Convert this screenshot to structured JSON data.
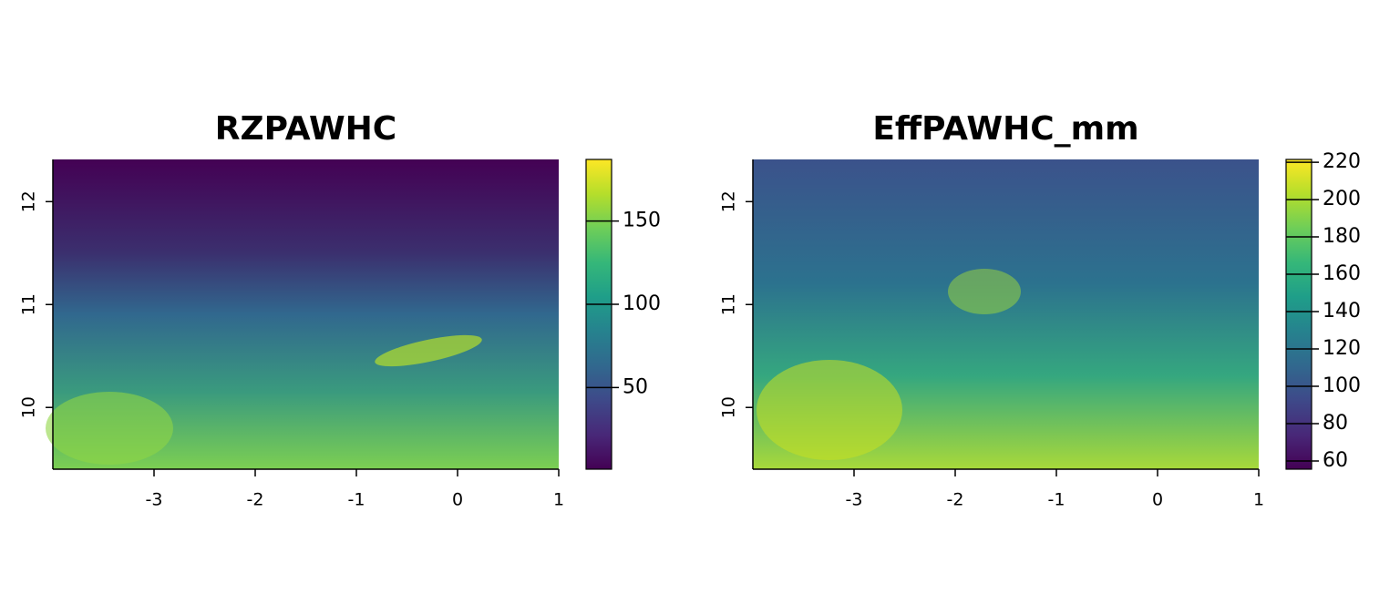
{
  "chart_data": [
    {
      "type": "raster",
      "title": "RZPAWHC",
      "xlim": [
        -4,
        1
      ],
      "xticks": [
        -3,
        -2,
        -1,
        0,
        1
      ],
      "ylim": [
        9.4,
        12.41
      ],
      "yticks": [
        10,
        11,
        12
      ],
      "zlim": [
        1,
        187
      ],
      "zticks": [
        50,
        100,
        150
      ],
      "colors": [
        "#440154",
        "#482878",
        "#3e4989",
        "#31688e",
        "#26828e",
        "#1f9e89",
        "#35b779",
        "#6ece58",
        "#b5de2b",
        "#fde725"
      ]
    },
    {
      "type": "raster",
      "title": "EffPAWHC_mm",
      "xlim": [
        -4,
        1
      ],
      "xticks": [
        -3,
        -2,
        -1,
        0,
        1
      ],
      "ylim": [
        9.4,
        12.41
      ],
      "yticks": [
        10,
        11,
        12
      ],
      "zlim": [
        55.6,
        221.5
      ],
      "zticks": [
        60,
        80,
        100,
        120,
        140,
        160,
        180,
        200,
        220
      ],
      "colors": [
        "#440154",
        "#482878",
        "#3e4989",
        "#31688e",
        "#26828e",
        "#1f9e89",
        "#35b779",
        "#6ece58",
        "#b5de2b",
        "#fde725"
      ]
    }
  ]
}
